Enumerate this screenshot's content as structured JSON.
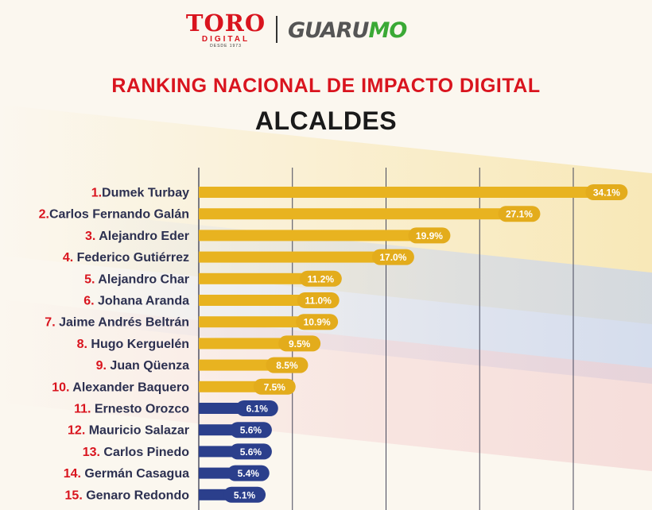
{
  "branding": {
    "toro_word": "TORO",
    "toro_sub": "DIGITAL",
    "toro_since": "DESDE 1973",
    "guarumo_dark": "GUARU",
    "guarumo_green": "MO"
  },
  "colors": {
    "gold": "#e8b320",
    "gold_pill": "#e3ac1c",
    "navy": "#2b3f8c",
    "red": "#d9141e",
    "grid": "#44465a"
  },
  "chart_data": {
    "type": "bar",
    "orientation": "horizontal",
    "title": "RANKING NACIONAL DE IMPACTO DIGITAL",
    "subtitle": "ALCALDES",
    "xlim": [
      0,
      40
    ],
    "grid": true,
    "legend": "none",
    "categories": [
      {
        "rank": "1.",
        "name": "Dumek Turbay",
        "value": 34.1,
        "label": "34.1%",
        "group": "top10"
      },
      {
        "rank": "2.",
        "name": "Carlos Fernando Galán",
        "value": 27.1,
        "label": "27.1%",
        "group": "top10"
      },
      {
        "rank": "3.",
        "name": "Alejandro Eder",
        "value": 19.9,
        "label": "19.9%",
        "group": "top10"
      },
      {
        "rank": "4.",
        "name": "Federico Gutiérrez",
        "value": 17.0,
        "label": "17.0%",
        "group": "top10"
      },
      {
        "rank": "5.",
        "name": "Alejandro Char",
        "value": 11.2,
        "label": "11.2%",
        "group": "top10"
      },
      {
        "rank": "6.",
        "name": "Johana Aranda",
        "value": 11.0,
        "label": "11.0%",
        "group": "top10"
      },
      {
        "rank": "7.",
        "name": "Jaime Andrés Beltrán",
        "value": 10.9,
        "label": "10.9%",
        "group": "top10"
      },
      {
        "rank": "8.",
        "name": "Hugo Kerguelén",
        "value": 9.5,
        "label": "9.5%",
        "group": "top10"
      },
      {
        "rank": "9.",
        "name": "Juan Qüenza",
        "value": 8.5,
        "label": "8.5%",
        "group": "top10"
      },
      {
        "rank": "10.",
        "name": "Alexander Baquero",
        "value": 7.5,
        "label": "7.5%",
        "group": "top10"
      },
      {
        "rank": "11.",
        "name": "Ernesto Orozco",
        "value": 6.1,
        "label": "6.1%",
        "group": "rest"
      },
      {
        "rank": "12.",
        "name": "Mauricio Salazar",
        "value": 5.6,
        "label": "5.6%",
        "group": "rest"
      },
      {
        "rank": "13.",
        "name": "Carlos Pinedo",
        "value": 5.6,
        "label": "5.6%",
        "group": "rest"
      },
      {
        "rank": "14.",
        "name": "Germán Casagua",
        "value": 5.4,
        "label": "5.4%",
        "group": "rest"
      },
      {
        "rank": "15.",
        "name": "Genaro Redondo",
        "value": 5.1,
        "label": "5.1%",
        "group": "rest"
      }
    ]
  }
}
